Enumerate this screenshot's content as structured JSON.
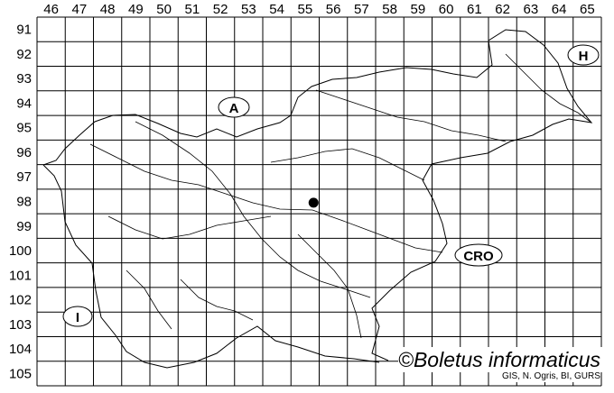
{
  "grid": {
    "columns": [
      "46",
      "47",
      "48",
      "49",
      "50",
      "51",
      "52",
      "53",
      "54",
      "55",
      "56",
      "57",
      "58",
      "59",
      "60",
      "61",
      "62",
      "63",
      "64",
      "65"
    ],
    "rows": [
      "91",
      "92",
      "93",
      "94",
      "95",
      "96",
      "97",
      "98",
      "99",
      "100",
      "101",
      "102",
      "103",
      "104",
      "105"
    ]
  },
  "country_labels": [
    {
      "code": "A"
    },
    {
      "code": "H"
    },
    {
      "code": "CRO"
    },
    {
      "code": "I"
    }
  ],
  "records": [
    {
      "column": "55",
      "row": "98"
    }
  ],
  "credit": "©Boletus informaticus",
  "source": "GIS, N. Ogris, BI, GURS",
  "colors": {
    "lines": "#000000",
    "background": "#ffffff"
  }
}
